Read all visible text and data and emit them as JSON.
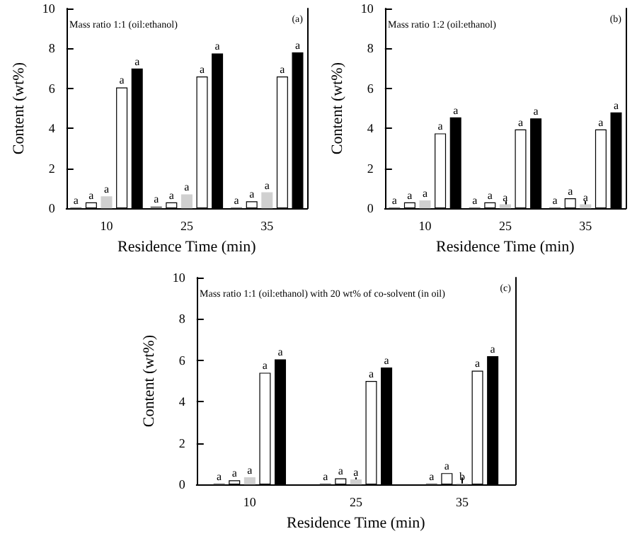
{
  "chart_data": [
    {
      "type": "bar",
      "title": "Mass ratio 1:1 (oil:ethanol)",
      "annotations": [
        "(a)"
      ],
      "xlabel": "Residence Time (min)",
      "ylabel": "Content (wt%)",
      "categories": [
        "10",
        "25",
        "35"
      ],
      "ylim": [
        0,
        10
      ],
      "yticks": [
        0,
        2,
        4,
        6,
        8,
        10
      ],
      "grid": false,
      "series": [
        {
          "color": "#808080",
          "values": [
            0.05,
            0.1,
            0.05
          ],
          "value_labels": [
            "a",
            "a",
            "a"
          ]
        },
        {
          "color": "#ffffff",
          "values": [
            0.3,
            0.3,
            0.35
          ],
          "value_labels": [
            "a",
            "a",
            "a"
          ]
        },
        {
          "color": "#d0d0d0",
          "values": [
            0.6,
            0.7,
            0.8
          ],
          "value_labels": [
            "a",
            "a",
            "a"
          ]
        },
        {
          "color": "#ffffff",
          "values": [
            6.05,
            6.6,
            6.6
          ],
          "value_labels": [
            "a",
            "a",
            "a"
          ]
        },
        {
          "color": "#000000",
          "values": [
            7.0,
            7.75,
            7.8
          ],
          "value_labels": [
            "a",
            "a",
            "a"
          ]
        }
      ]
    },
    {
      "type": "bar",
      "title": "Mass ratio 1:2 (oil:ethanol)",
      "annotations": [
        "(b)"
      ],
      "xlabel": "Residence Time (min)",
      "ylabel": "Content (wt%)",
      "categories": [
        "10",
        "25",
        "35"
      ],
      "ylim": [
        0,
        10
      ],
      "yticks": [
        0,
        2,
        4,
        6,
        8,
        10
      ],
      "grid": false,
      "series": [
        {
          "color": "#808080",
          "values": [
            0.05,
            0.05,
            0.05
          ],
          "value_labels": [
            "a",
            "a",
            "a"
          ]
        },
        {
          "color": "#ffffff",
          "values": [
            0.3,
            0.3,
            0.5
          ],
          "value_labels": [
            "a",
            "a",
            "a"
          ]
        },
        {
          "color": "#d0d0d0",
          "values": [
            0.4,
            0.2,
            0.2
          ],
          "value_labels": [
            "a",
            "a",
            "a"
          ]
        },
        {
          "color": "#ffffff",
          "values": [
            3.75,
            3.95,
            3.95
          ],
          "value_labels": [
            "a",
            "a",
            "a"
          ]
        },
        {
          "color": "#000000",
          "values": [
            4.55,
            4.5,
            4.8
          ],
          "value_labels": [
            "a",
            "a",
            "a"
          ]
        }
      ]
    },
    {
      "type": "bar",
      "title": "Mass ratio 1:1 (oil:ethanol) with 20 wt% of co-solvent (in oil)",
      "annotations": [
        "(c)"
      ],
      "xlabel": "Residence Time (min)",
      "ylabel": "Content (wt%)",
      "categories": [
        "10",
        "25",
        "35"
      ],
      "ylim": [
        0,
        10
      ],
      "yticks": [
        0,
        2,
        4,
        6,
        8,
        10
      ],
      "grid": false,
      "series": [
        {
          "color": "#808080",
          "values": [
            0.05,
            0.05,
            0.05
          ],
          "value_labels": [
            "a",
            "a",
            "a"
          ]
        },
        {
          "color": "#ffffff",
          "values": [
            0.2,
            0.3,
            0.55
          ],
          "value_labels": [
            "a",
            "a",
            "a"
          ]
        },
        {
          "color": "#d0d0d0",
          "values": [
            0.35,
            0.25,
            0.05
          ],
          "value_labels": [
            "a",
            "a",
            "b"
          ]
        },
        {
          "color": "#ffffff",
          "values": [
            5.4,
            5.0,
            5.5
          ],
          "value_labels": [
            "a",
            "a",
            "a"
          ]
        },
        {
          "color": "#000000",
          "values": [
            6.05,
            5.65,
            6.2
          ],
          "value_labels": [
            "a",
            "a",
            "a"
          ]
        }
      ]
    }
  ]
}
